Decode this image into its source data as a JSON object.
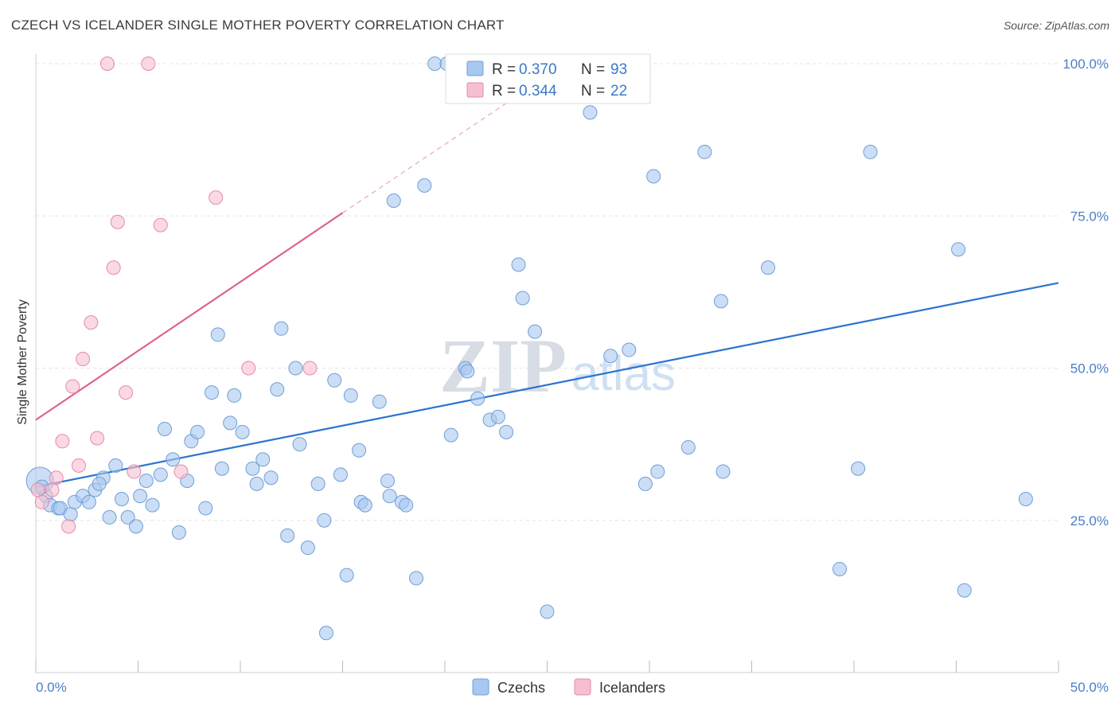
{
  "header": {
    "title": "CZECH VS ICELANDER SINGLE MOTHER POVERTY CORRELATION CHART",
    "source": "Source: ZipAtlas.com"
  },
  "watermark": {
    "part1": "ZIP",
    "part2": "atlas"
  },
  "colors": {
    "czechs_fill": "#a9c8ef",
    "czechs_stroke": "#6f9fd8",
    "czechs_line": "#2b74d0",
    "icelanders_fill": "#f6bfd0",
    "icelanders_stroke": "#e58aa8",
    "icelanders_line": "#e0628e",
    "tick_label": "#4a7fc8"
  },
  "legend": {
    "rows": [
      {
        "r_label": "R = ",
        "r_value": "0.370",
        "n_label": "N = ",
        "n_value": "93",
        "series": "czechs"
      },
      {
        "r_label": "R = ",
        "r_value": "0.344",
        "n_label": "N = ",
        "n_value": "22",
        "series": "icelanders"
      }
    ]
  },
  "chart_data": {
    "type": "scatter",
    "title": "CZECH VS ICELANDER SINGLE MOTHER POVERTY CORRELATION CHART",
    "xlabel": "",
    "ylabel": "Single Mother Poverty",
    "xlim": [
      0,
      50
    ],
    "ylim": [
      0,
      105
    ],
    "x_tick_labels": [
      "0.0%",
      "50.0%"
    ],
    "y_ticks": [
      25,
      50,
      75,
      100
    ],
    "y_tick_labels": [
      "25.0%",
      "50.0%",
      "75.0%",
      "100.0%"
    ],
    "grid": true,
    "legend_placement": "top-center",
    "series": [
      {
        "name": "Czechs",
        "trend": {
          "x": [
            0,
            50
          ],
          "y": [
            30.5,
            64.0
          ]
        },
        "points": [
          [
            0.2,
            31.5
          ],
          [
            0.5,
            29
          ],
          [
            0.7,
            27.5
          ],
          [
            1.1,
            27
          ],
          [
            1.2,
            27
          ],
          [
            1.7,
            26
          ],
          [
            1.9,
            28
          ],
          [
            2.3,
            29
          ],
          [
            2.6,
            28
          ],
          [
            2.9,
            30
          ],
          [
            3.3,
            32
          ],
          [
            3.6,
            25.5
          ],
          [
            3.9,
            34
          ],
          [
            4.2,
            28.5
          ],
          [
            4.5,
            25.5
          ],
          [
            4.9,
            24
          ],
          [
            5.1,
            29
          ],
          [
            5.4,
            31.5
          ],
          [
            5.7,
            27.5
          ],
          [
            6.1,
            32.5
          ],
          [
            6.3,
            40
          ],
          [
            6.7,
            35
          ],
          [
            7.0,
            23
          ],
          [
            7.4,
            31.5
          ],
          [
            7.6,
            38
          ],
          [
            7.9,
            39.5
          ],
          [
            8.3,
            27
          ],
          [
            8.6,
            46
          ],
          [
            8.9,
            55.5
          ],
          [
            9.1,
            33.5
          ],
          [
            9.5,
            41
          ],
          [
            9.7,
            45.5
          ],
          [
            10.1,
            39.5
          ],
          [
            10.6,
            33.5
          ],
          [
            10.8,
            31
          ],
          [
            11.1,
            35
          ],
          [
            11.5,
            32
          ],
          [
            11.8,
            46.5
          ],
          [
            12.0,
            56.5
          ],
          [
            12.3,
            22.5
          ],
          [
            12.7,
            50
          ],
          [
            12.9,
            37.5
          ],
          [
            13.3,
            20.5
          ],
          [
            13.8,
            31
          ],
          [
            14.1,
            25
          ],
          [
            14.2,
            6.5
          ],
          [
            14.6,
            48
          ],
          [
            14.9,
            32.5
          ],
          [
            15.2,
            16
          ],
          [
            15.4,
            45.5
          ],
          [
            15.8,
            36.5
          ],
          [
            15.9,
            28
          ],
          [
            16.1,
            27.5
          ],
          [
            16.8,
            44.5
          ],
          [
            17.2,
            31.5
          ],
          [
            17.3,
            29
          ],
          [
            17.5,
            77.5
          ],
          [
            17.9,
            28
          ],
          [
            18.1,
            27.5
          ],
          [
            18.6,
            15.5
          ],
          [
            19.0,
            80
          ],
          [
            19.5,
            100
          ],
          [
            20.1,
            100
          ],
          [
            20.3,
            39
          ],
          [
            21.0,
            50
          ],
          [
            21.1,
            49.5
          ],
          [
            21.6,
            45
          ],
          [
            22.2,
            41.5
          ],
          [
            22.6,
            42
          ],
          [
            23.0,
            39.5
          ],
          [
            23.6,
            67
          ],
          [
            23.8,
            61.5
          ],
          [
            24.4,
            56
          ],
          [
            25.0,
            10
          ],
          [
            27.1,
            92
          ],
          [
            28.1,
            52
          ],
          [
            29.0,
            53
          ],
          [
            29.8,
            31
          ],
          [
            30.2,
            81.5
          ],
          [
            30.4,
            33
          ],
          [
            31.9,
            37
          ],
          [
            32.7,
            85.5
          ],
          [
            33.5,
            61
          ],
          [
            33.6,
            33
          ],
          [
            35.8,
            66.5
          ],
          [
            39.3,
            17
          ],
          [
            40.2,
            33.5
          ],
          [
            40.8,
            85.5
          ],
          [
            45.1,
            69.5
          ],
          [
            45.4,
            13.5
          ],
          [
            48.4,
            28.5
          ],
          [
            0.3,
            30.5
          ],
          [
            3.1,
            31
          ]
        ]
      },
      {
        "name": "Icelanders",
        "trend": {
          "x": [
            0,
            15
          ],
          "y": [
            41.5,
            75.5
          ]
        },
        "trend_dashed_to": {
          "x": 25,
          "y": 98
        },
        "points": [
          [
            0.1,
            30
          ],
          [
            0.3,
            28
          ],
          [
            0.8,
            30
          ],
          [
            1.0,
            32
          ],
          [
            1.3,
            38
          ],
          [
            1.6,
            24
          ],
          [
            1.8,
            47
          ],
          [
            2.1,
            34
          ],
          [
            2.3,
            51.5
          ],
          [
            2.7,
            57.5
          ],
          [
            3.0,
            38.5
          ],
          [
            3.5,
            100
          ],
          [
            3.8,
            66.5
          ],
          [
            4.0,
            74
          ],
          [
            4.4,
            46
          ],
          [
            4.8,
            33
          ],
          [
            5.5,
            100
          ],
          [
            6.1,
            73.5
          ],
          [
            7.1,
            33
          ],
          [
            8.8,
            78
          ],
          [
            10.4,
            50
          ],
          [
            13.4,
            50
          ]
        ]
      }
    ]
  },
  "bottom_legend": {
    "items": [
      {
        "label": "Czechs",
        "series": "czechs"
      },
      {
        "label": "Icelanders",
        "series": "icelanders"
      }
    ]
  }
}
